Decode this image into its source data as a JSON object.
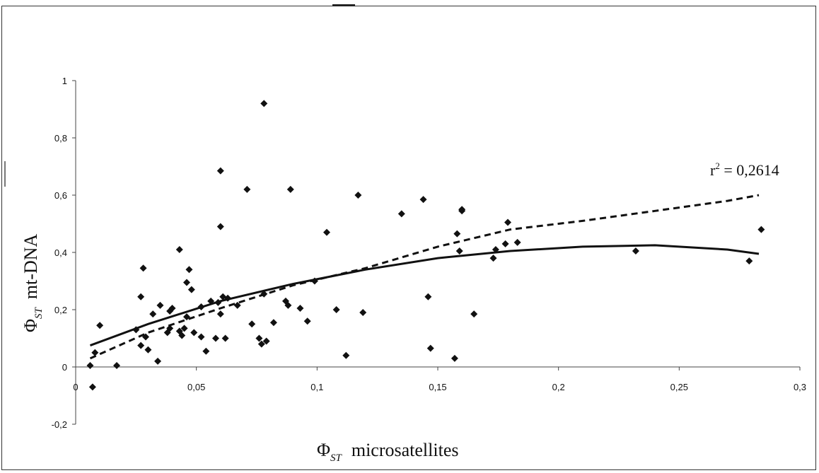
{
  "chart_data": {
    "type": "scatter",
    "title": "",
    "xlabel": {
      "symbol": "Φ",
      "subscript": "ST",
      "text": "microsatellites"
    },
    "ylabel": {
      "symbol": "Φ",
      "subscript": "ST",
      "text": "mt-DNA"
    },
    "xlim": [
      0,
      0.3
    ],
    "ylim": [
      -0.2,
      1
    ],
    "x_ticks": [
      "0",
      "0,05",
      "0,1",
      "0,15",
      "0,2",
      "0,25",
      "0,3"
    ],
    "y_ticks": [
      "-0,2",
      "0",
      "0,2",
      "0,4",
      "0,6",
      "0,8",
      "1"
    ],
    "grid": false,
    "annotation": {
      "text": "r",
      "superscript": "2",
      "value": " = 0,2614"
    },
    "points": [
      [
        0.006,
        0.005
      ],
      [
        0.007,
        -0.07
      ],
      [
        0.008,
        0.05
      ],
      [
        0.01,
        0.145
      ],
      [
        0.017,
        0.005
      ],
      [
        0.025,
        0.13
      ],
      [
        0.027,
        0.245
      ],
      [
        0.028,
        0.345
      ],
      [
        0.027,
        0.075
      ],
      [
        0.029,
        0.105
      ],
      [
        0.03,
        0.06
      ],
      [
        0.032,
        0.185
      ],
      [
        0.034,
        0.02
      ],
      [
        0.035,
        0.215
      ],
      [
        0.038,
        0.12
      ],
      [
        0.039,
        0.135
      ],
      [
        0.039,
        0.195
      ],
      [
        0.04,
        0.205
      ],
      [
        0.043,
        0.125
      ],
      [
        0.043,
        0.41
      ],
      [
        0.044,
        0.11
      ],
      [
        0.045,
        0.135
      ],
      [
        0.046,
        0.175
      ],
      [
        0.046,
        0.295
      ],
      [
        0.047,
        0.34
      ],
      [
        0.048,
        0.27
      ],
      [
        0.049,
        0.12
      ],
      [
        0.052,
        0.105
      ],
      [
        0.052,
        0.21
      ],
      [
        0.054,
        0.055
      ],
      [
        0.056,
        0.23
      ],
      [
        0.058,
        0.1
      ],
      [
        0.059,
        0.225
      ],
      [
        0.06,
        0.49
      ],
      [
        0.06,
        0.685
      ],
      [
        0.06,
        0.185
      ],
      [
        0.061,
        0.245
      ],
      [
        0.062,
        0.1
      ],
      [
        0.063,
        0.24
      ],
      [
        0.067,
        0.215
      ],
      [
        0.071,
        0.62
      ],
      [
        0.073,
        0.15
      ],
      [
        0.076,
        0.1
      ],
      [
        0.077,
        0.08
      ],
      [
        0.078,
        0.255
      ],
      [
        0.078,
        0.92
      ],
      [
        0.079,
        0.09
      ],
      [
        0.082,
        0.155
      ],
      [
        0.087,
        0.23
      ],
      [
        0.088,
        0.215
      ],
      [
        0.089,
        0.62
      ],
      [
        0.093,
        0.205
      ],
      [
        0.096,
        0.16
      ],
      [
        0.099,
        0.3
      ],
      [
        0.104,
        0.47
      ],
      [
        0.108,
        0.2
      ],
      [
        0.112,
        0.04
      ],
      [
        0.117,
        0.6
      ],
      [
        0.119,
        0.19
      ],
      [
        0.135,
        0.535
      ],
      [
        0.144,
        0.585
      ],
      [
        0.146,
        0.245
      ],
      [
        0.147,
        0.065
      ],
      [
        0.157,
        0.03
      ],
      [
        0.158,
        0.465
      ],
      [
        0.159,
        0.405
      ],
      [
        0.16,
        0.545
      ],
      [
        0.16,
        0.55
      ],
      [
        0.165,
        0.185
      ],
      [
        0.173,
        0.38
      ],
      [
        0.174,
        0.41
      ],
      [
        0.178,
        0.43
      ],
      [
        0.179,
        0.505
      ],
      [
        0.183,
        0.435
      ],
      [
        0.232,
        0.405
      ],
      [
        0.279,
        0.37
      ],
      [
        0.284,
        0.48
      ]
    ],
    "trendline_polynomial": {
      "x": [
        0.006,
        0.03,
        0.06,
        0.09,
        0.12,
        0.15,
        0.18,
        0.21,
        0.24,
        0.27,
        0.283
      ],
      "y": [
        0.075,
        0.15,
        0.23,
        0.29,
        0.34,
        0.38,
        0.405,
        0.42,
        0.425,
        0.41,
        0.395
      ]
    },
    "trendline_dashed": {
      "x": [
        0.006,
        0.03,
        0.06,
        0.09,
        0.12,
        0.15,
        0.18,
        0.21,
        0.24,
        0.27,
        0.283
      ],
      "y": [
        0.03,
        0.12,
        0.205,
        0.285,
        0.345,
        0.42,
        0.48,
        0.51,
        0.545,
        0.58,
        0.6
      ]
    }
  }
}
